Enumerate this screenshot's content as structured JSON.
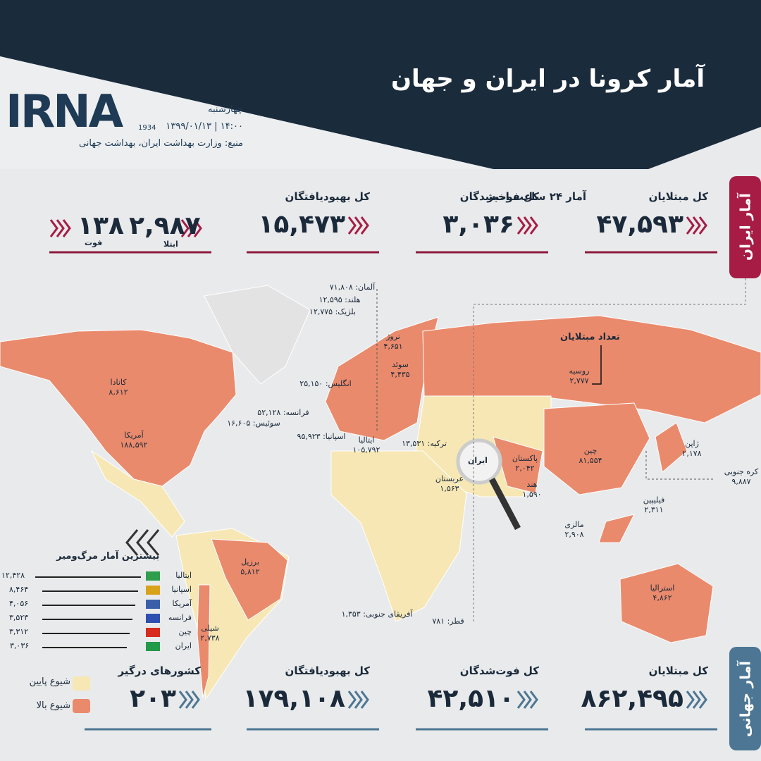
{
  "header": {
    "title": "آمار کرونا در ایران و جهان",
    "logo": "IRNA",
    "logo_year": "1934",
    "day": "چهارشنبه",
    "datetime": "۱۴:۰۰ | ۱۳۹۹/۰۱/۱۳",
    "source": "منبع: وزارت بهداشت ایران، بهداشت جهانی"
  },
  "iran": {
    "label": "آمار ایران",
    "stats": [
      {
        "label": "کل مبتلایان",
        "value": "۴۷,۵۹۳"
      },
      {
        "label": "کل فوت‌شدگان",
        "value": "۳,۰۳۶"
      },
      {
        "label": "کل بهبودیافتگان",
        "value": "۱۵,۴۷۳"
      }
    ],
    "last24": {
      "label": "آمار ۲۴ ساعت اخیر",
      "cases": "۲,۹۸۷",
      "cases_label": "ابتلا",
      "deaths": "۱۳۸",
      "deaths_label": "فوت"
    }
  },
  "map": {
    "cases_title": "تعداد مبتلایان",
    "iran_label": "ایران",
    "countries": [
      {
        "name": "آلمان:",
        "value": "۷۱,۸۰۸"
      },
      {
        "name": "هلند:",
        "value": "۱۲,۵۹۵"
      },
      {
        "name": "بلژیک:",
        "value": "۱۲,۷۷۵"
      },
      {
        "name": "نروژ",
        "value": "۴,۶۵۱"
      },
      {
        "name": "سوئد",
        "value": "۴,۴۳۵"
      },
      {
        "name": "انگلیس:",
        "value": "۲۵,۱۵۰"
      },
      {
        "name": "فرانسه:",
        "value": "۵۲,۱۲۸"
      },
      {
        "name": "سوئیس:",
        "value": "۱۶,۶۰۵"
      },
      {
        "name": "اسپانیا:",
        "value": "۹۵,۹۲۳"
      },
      {
        "name": "ایتالیا",
        "value": "۱۰۵,۷۹۲"
      },
      {
        "name": "ترکیه:",
        "value": "۱۳,۵۳۱"
      },
      {
        "name": "کانادا",
        "value": "۸,۶۱۲"
      },
      {
        "name": "آمریکا",
        "value": "۱۸۸,۵۹۲"
      },
      {
        "name": "روسیه",
        "value": "۲,۷۷۷"
      },
      {
        "name": "چین",
        "value": "۸۱,۵۵۴"
      },
      {
        "name": "ژاپن",
        "value": "۲,۱۷۸"
      },
      {
        "name": "کره جنوبی",
        "value": "۹,۸۸۷"
      },
      {
        "name": "پاکستان",
        "value": "۲,۰۴۲"
      },
      {
        "name": "هند",
        "value": "۱,۵۹۰"
      },
      {
        "name": "عربستان",
        "value": "۱,۵۶۳"
      },
      {
        "name": "فیلیپین",
        "value": "۲,۳۱۱"
      },
      {
        "name": "مالزی",
        "value": "۲,۹۰۸"
      },
      {
        "name": "استرالیا",
        "value": "۴,۸۶۲"
      },
      {
        "name": "برزیل",
        "value": "۵,۸۱۲"
      },
      {
        "name": "شیلی",
        "value": "۲,۷۳۸"
      },
      {
        "name": "آفریقای جنوبی:",
        "value": "۱,۳۵۳"
      },
      {
        "name": "قطر:",
        "value": "۷۸۱"
      }
    ]
  },
  "deaths": {
    "title": "بیشترین آمار مرگ‌ومیر",
    "rows": [
      {
        "name": "ایتالیا",
        "value": "۱۲,۴۲۸"
      },
      {
        "name": "اسپانیا",
        "value": "۸,۴۶۴"
      },
      {
        "name": "آمریکا",
        "value": "۴,۰۵۶"
      },
      {
        "name": "فرانسه",
        "value": "۳,۵۲۳"
      },
      {
        "name": "چین",
        "value": "۳,۳۱۲"
      },
      {
        "name": "ایران",
        "value": "۳,۰۳۶"
      }
    ]
  },
  "legend": {
    "low": "شیوع پایین",
    "high": "شیوع بالا"
  },
  "world": {
    "label": "آمار جهانی",
    "stats": [
      {
        "label": "کل مبتلایان",
        "value": "۸۶۲,۴۹۵"
      },
      {
        "label": "کل فوت‌شدگان",
        "value": "۴۲,۵۱۰"
      },
      {
        "label": "کل بهبودیافتگان",
        "value": "۱۷۹,۱۰۸"
      },
      {
        "label": "کشورهای درگیر",
        "value": "۲۰۳"
      }
    ]
  }
}
